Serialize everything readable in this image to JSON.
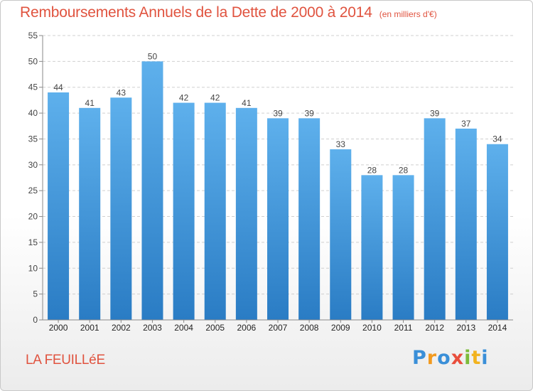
{
  "title": "Remboursements Annuels de la Dette de 2000 à 2014",
  "unit": "(en milliers d'€)",
  "location": "LA FEUILLéE",
  "brand": "Proxiti",
  "colors": {
    "accent": "#e0533f",
    "bar_light": "#5eb0ec",
    "bar_dark": "#2a7cc4",
    "grid": "#d0d0d0"
  },
  "chart_data": {
    "type": "bar",
    "title": "Remboursements Annuels de la Dette de 2000 à 2014",
    "subtitle": "(en milliers d'€)",
    "categories": [
      "2000",
      "2001",
      "2002",
      "2003",
      "2004",
      "2005",
      "2006",
      "2007",
      "2008",
      "2009",
      "2010",
      "2011",
      "2012",
      "2013",
      "2014"
    ],
    "values": [
      44,
      41,
      43,
      50,
      42,
      42,
      41,
      39,
      39,
      33,
      28,
      28,
      39,
      37,
      34
    ],
    "ylim": [
      0,
      55
    ],
    "yticks": [
      0,
      5,
      10,
      15,
      20,
      25,
      30,
      35,
      40,
      45,
      50,
      55
    ],
    "grid": true,
    "data_labels": true
  }
}
